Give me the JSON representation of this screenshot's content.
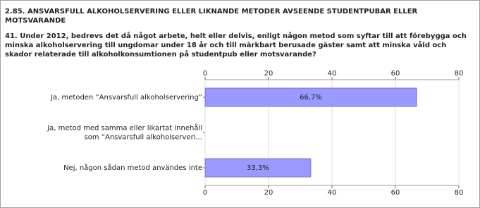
{
  "section_title": "2.85. ANSVARSFULL ALKOHOLSERVERING ELLER LIKNANDE METODER AVSEENDE STUDENTPUBAR ELLER MOTSVARANDE",
  "chart_data": {
    "type": "hbar",
    "title": "41. Under 2012, bedrevs det då något arbete, helt eller delvis, enligt någon metod som syftar till att förebygga och minska alkoholservering till ungdomar under 18 år och till märkbart berusade gäster samt att minska våld och skador relaterade till alkoholkonsumtionen på studentpub eller motsvarande?",
    "categories": [
      "Ja, metoden ”Ansvarsfull alkoholservering”",
      "Ja, metod med samma eller likartat innehåll\nsom ”Ansvarsfull alkoholserveri...",
      "Nej, någon sådan metod användes inte"
    ],
    "values": [
      66.7,
      0,
      33.3
    ],
    "value_labels": [
      "66,7%",
      null,
      "33,3%"
    ],
    "color": "#9999ff",
    "xlim": [
      0,
      80
    ],
    "xticks": [
      0,
      20,
      40,
      60,
      80
    ],
    "grid": true
  }
}
